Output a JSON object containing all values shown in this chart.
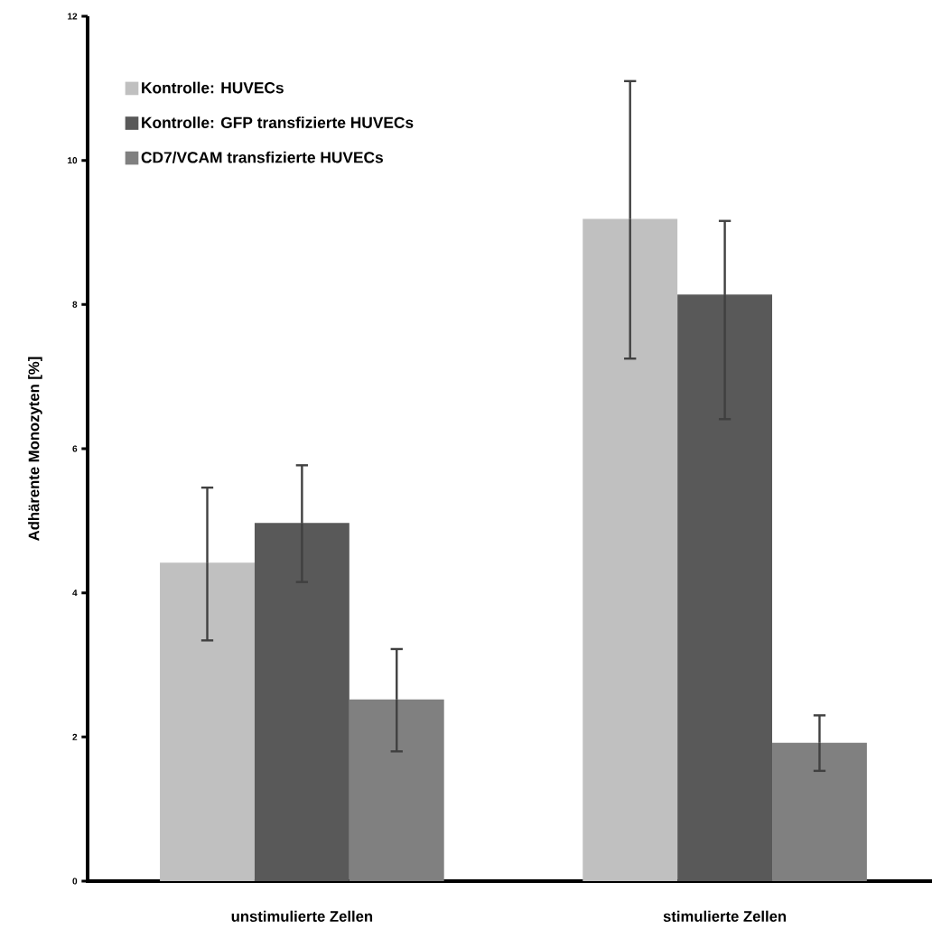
{
  "chart_data": {
    "type": "bar",
    "ylabel": "Adhärente Monozyten [%]",
    "categories": [
      "unstimulierte Zellen",
      "stimulierte Zellen"
    ],
    "series": [
      {
        "name": "Kontrolle: HUVECs",
        "color": "#c0c0c0",
        "values": [
          4.42,
          9.19
        ],
        "errors": [
          [
            3.34,
            5.46
          ],
          [
            7.25,
            11.1
          ]
        ]
      },
      {
        "name": "Kontrolle: GFP transfizierte HUVECs",
        "color": "#595959",
        "values": [
          4.97,
          8.14
        ],
        "errors": [
          [
            4.15,
            5.77
          ],
          [
            6.41,
            9.16
          ]
        ]
      },
      {
        "name": "CD7/VCAM transfizierte HUVECs",
        "color": "#808080",
        "values": [
          2.52,
          1.92
        ],
        "errors": [
          [
            1.8,
            3.22
          ],
          [
            1.53,
            2.3
          ]
        ]
      }
    ],
    "ylim": [
      0,
      12
    ],
    "yticks": [
      0,
      2,
      4,
      6,
      8,
      10,
      12
    ],
    "grid": false,
    "legend": "top left"
  }
}
